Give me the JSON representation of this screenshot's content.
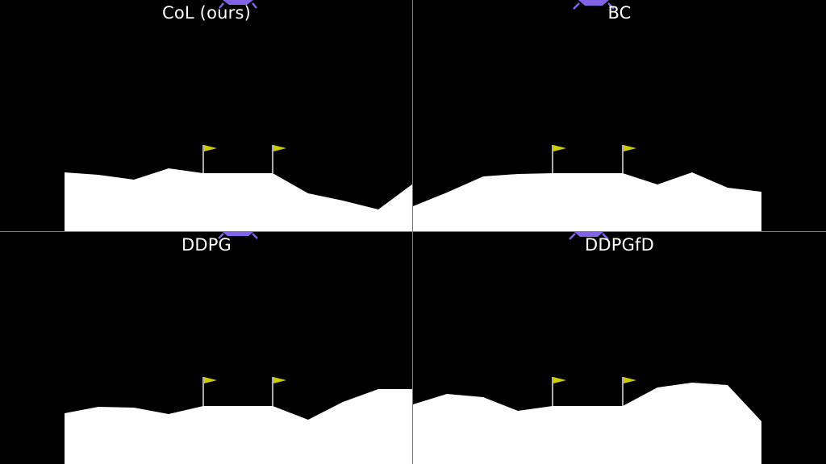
{
  "colors": {
    "sky": "#000000",
    "terrain": "#ffffff",
    "flag": "#cccc00",
    "pole": "#e6e6e6",
    "lander": "#8064e6",
    "lander_dark": "#4d4d80",
    "divider": "#7a7a7a"
  },
  "panels": [
    {
      "title": "CoL (ours)"
    },
    {
      "title": "BC"
    },
    {
      "title": "DDPG"
    },
    {
      "title": "DDPGfD"
    }
  ]
}
